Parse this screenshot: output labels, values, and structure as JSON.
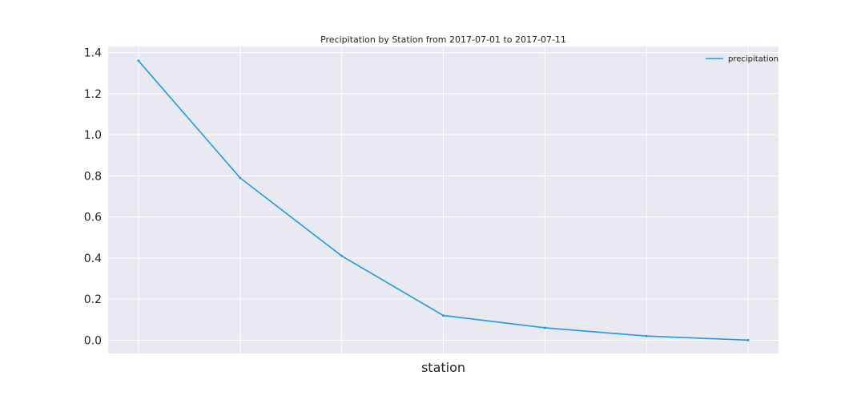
{
  "chart_data": {
    "type": "line",
    "title": "Precipitation by Station from 2017-07-01 to 2017-07-11",
    "xlabel": "station",
    "ylabel": "",
    "categories": [
      "",
      "",
      "",
      "",
      "",
      "",
      ""
    ],
    "series": [
      {
        "name": "precipitation",
        "color": "#1f9ae6",
        "values": [
          1.36,
          0.79,
          0.41,
          0.12,
          0.06,
          0.02,
          0.0
        ]
      }
    ],
    "ylim": [
      -0.065,
      1.43
    ],
    "yticks": [
      "0.0",
      "0.2",
      "0.4",
      "0.6",
      "0.8",
      "1.0",
      "1.2",
      "1.4"
    ],
    "grid": true,
    "legend_position": "top-right",
    "background": "#e9e9f1"
  }
}
